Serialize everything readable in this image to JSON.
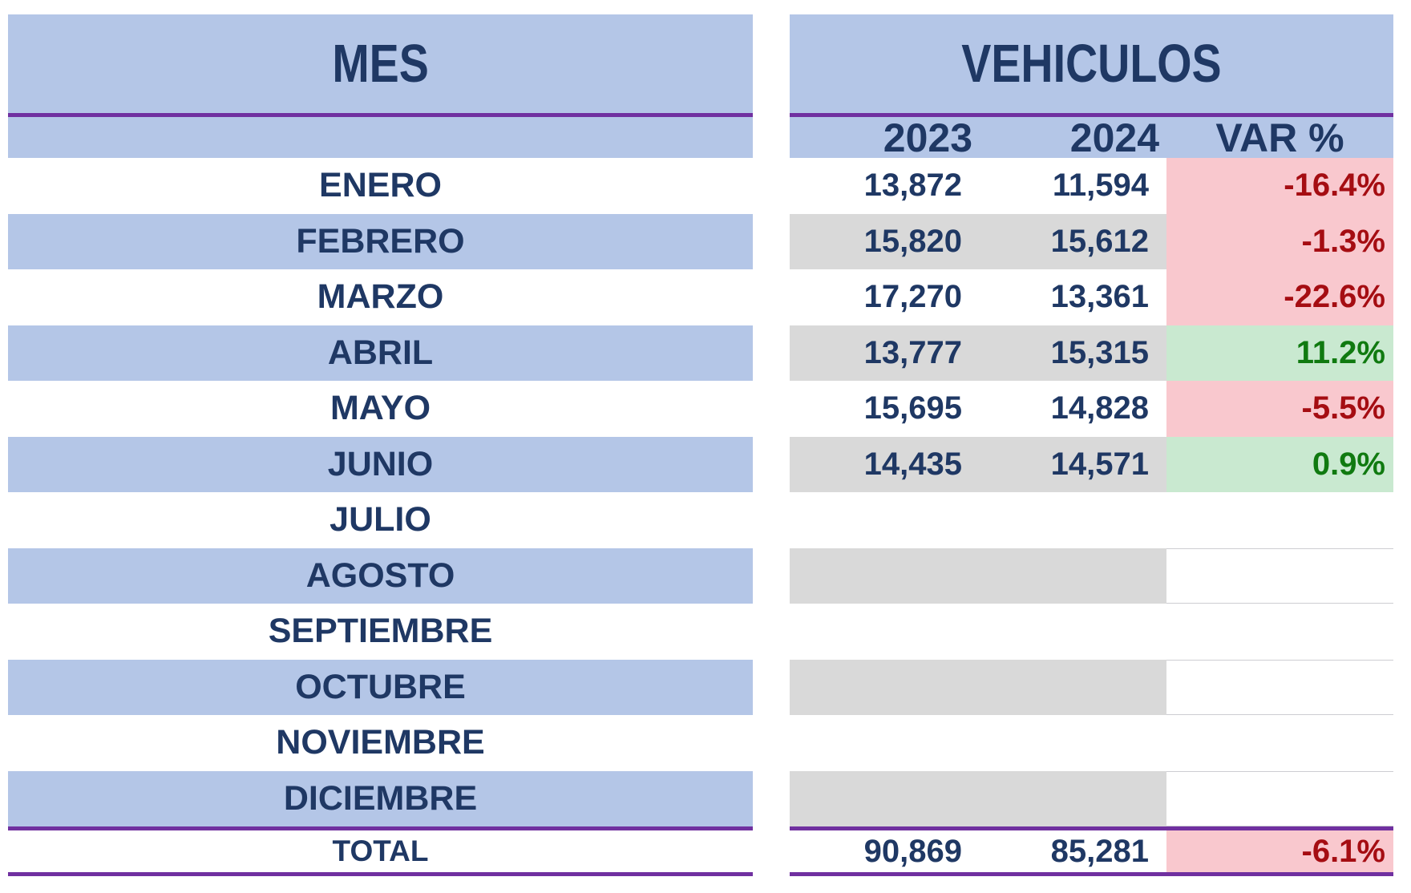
{
  "left_table": {
    "title": "MES",
    "total_label": "TOTAL"
  },
  "right_table": {
    "title": "VEHICULOS",
    "columns": {
      "c2023": "2023",
      "c2024": "2024",
      "var": "VAR %"
    },
    "total": {
      "y2023": "90,869",
      "y2024": "85,281",
      "var": "-6.1%",
      "var_state": "neg"
    }
  },
  "rows": [
    {
      "month": "ENERO",
      "y2023": "13,872",
      "y2024": "11,594",
      "var": "-16.4%",
      "var_state": "neg"
    },
    {
      "month": "FEBRERO",
      "y2023": "15,820",
      "y2024": "15,612",
      "var": "-1.3%",
      "var_state": "neg"
    },
    {
      "month": "MARZO",
      "y2023": "17,270",
      "y2024": "13,361",
      "var": "-22.6%",
      "var_state": "neg"
    },
    {
      "month": "ABRIL",
      "y2023": "13,777",
      "y2024": "15,315",
      "var": "11.2%",
      "var_state": "pos"
    },
    {
      "month": "MAYO",
      "y2023": "15,695",
      "y2024": "14,828",
      "var": "-5.5%",
      "var_state": "neg"
    },
    {
      "month": "JUNIO",
      "y2023": "14,435",
      "y2024": "14,571",
      "var": "0.9%",
      "var_state": "pos"
    },
    {
      "month": "JULIO",
      "y2023": "",
      "y2024": "",
      "var": "",
      "var_state": "none"
    },
    {
      "month": "AGOSTO",
      "y2023": "",
      "y2024": "",
      "var": "",
      "var_state": "none"
    },
    {
      "month": "SEPTIEMBRE",
      "y2023": "",
      "y2024": "",
      "var": "",
      "var_state": "none"
    },
    {
      "month": "OCTUBRE",
      "y2023": "",
      "y2024": "",
      "var": "",
      "var_state": "none"
    },
    {
      "month": "NOVIEMBRE",
      "y2023": "",
      "y2024": "",
      "var": "",
      "var_state": "none"
    },
    {
      "month": "DICIEMBRE",
      "y2023": "",
      "y2024": "",
      "var": "",
      "var_state": "none"
    }
  ],
  "colors": {
    "navy": "#1f3864",
    "purple": "#7030a0",
    "band_blue": "#b4c6e7",
    "band_gray": "#d9d9d9",
    "bad_bg": "#f9c8ce",
    "bad_text": "#a50d12",
    "good_bg": "#c9e9d0",
    "good_text": "#107a10"
  }
}
